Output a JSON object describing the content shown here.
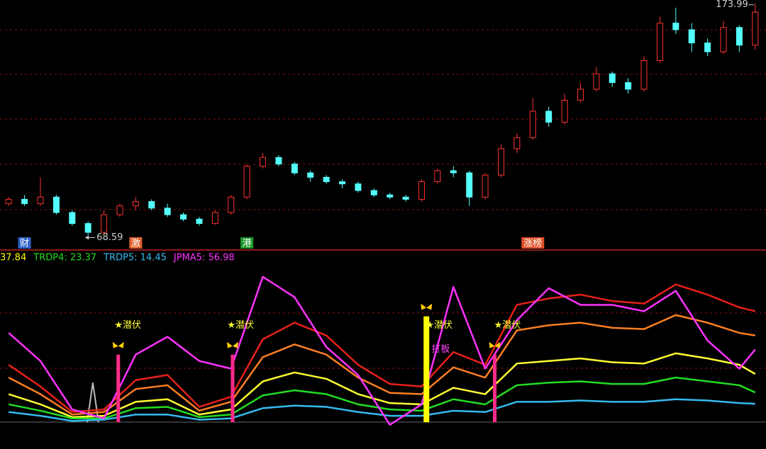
{
  "chart_data": [
    {
      "type": "candlestick",
      "xlim": [
        -0.5,
        47.5
      ],
      "ylim": [
        62.3,
        175.5
      ],
      "up_color": "#ff3232",
      "down_color": "#54ffff",
      "open": [
        83,
        85,
        83,
        86,
        79,
        74,
        70,
        78,
        82,
        84,
        81,
        78,
        76,
        74,
        79,
        86,
        100,
        104,
        101,
        97,
        95,
        93,
        92,
        89,
        87,
        86,
        85,
        93,
        98,
        97,
        86,
        96,
        108,
        113,
        125,
        120,
        130,
        135,
        142,
        138,
        135,
        148,
        165,
        162,
        156,
        152,
        163,
        155
      ],
      "close": [
        85,
        83,
        86,
        79,
        74,
        70,
        78,
        82,
        84,
        81,
        78,
        76,
        74,
        79,
        86,
        100,
        104,
        101,
        97,
        95,
        93,
        92,
        89,
        87,
        86,
        85,
        93,
        98,
        97,
        86,
        96,
        108,
        113,
        125,
        120,
        130,
        135,
        142,
        138,
        135,
        148,
        165,
        162,
        156,
        152,
        163,
        155,
        170
      ],
      "high": [
        86,
        87,
        95,
        87,
        80,
        75,
        80,
        83,
        86,
        85,
        83,
        79,
        77,
        80,
        87,
        101,
        106,
        105,
        102,
        98,
        96,
        94,
        93,
        90,
        88,
        87,
        94,
        99,
        100,
        98,
        97,
        110,
        115,
        131,
        127,
        133,
        138,
        145,
        143,
        140,
        150,
        168,
        172,
        165,
        158,
        166,
        164,
        173.99
      ],
      "low": [
        82,
        82,
        82,
        78,
        73,
        68.59,
        69.5,
        77,
        80,
        80,
        77,
        75,
        73,
        73.5,
        78,
        85,
        99,
        100,
        96,
        93,
        92,
        90,
        88,
        86,
        85,
        84,
        84,
        92,
        95,
        82,
        85,
        95,
        106,
        112,
        118,
        119,
        129,
        134,
        136,
        133,
        134,
        147,
        160,
        152,
        150,
        151,
        152,
        153
      ],
      "events": [
        {
          "x": 1,
          "label": "财",
          "color": "#2f63c9"
        },
        {
          "x": 8,
          "label": "激",
          "color": "#e0602a"
        },
        {
          "x": 15,
          "label": "港",
          "color": "#1e9a2a"
        },
        {
          "x": 33,
          "label": "涨榜",
          "color": "#e0502a"
        }
      ]
    },
    {
      "type": "line",
      "xlim": [
        -0.5,
        47.5
      ],
      "ylim": [
        -21,
        135
      ],
      "header": [
        {
          "text": "37.84",
          "color": "#ffff00"
        },
        {
          "text": "TRDP4: 23.37",
          "color": "#22dd22"
        },
        {
          "text": "TRDP5: 14.45",
          "color": "#33bbee"
        },
        {
          "text": "JPMA5: 56.98",
          "color": "#ff33ff"
        }
      ],
      "x": [
        0,
        2,
        4,
        6,
        8,
        10,
        12,
        14,
        16,
        18,
        20,
        22,
        24,
        26,
        28,
        30,
        32,
        34,
        36,
        38,
        40,
        42,
        44,
        46,
        47
      ],
      "series": [
        {
          "color": "#e8201a",
          "values": [
            45,
            28,
            8,
            10,
            33,
            37,
            12,
            20,
            65,
            78,
            68,
            45,
            30,
            28,
            55,
            45,
            92,
            97,
            100,
            95,
            93,
            108,
            100,
            90,
            87
          ]
        },
        {
          "color": "#ff7f22",
          "values": [
            35,
            22,
            6,
            8,
            26,
            29,
            9,
            16,
            51,
            61,
            53,
            35,
            23,
            22,
            43,
            35,
            72,
            76,
            78,
            74,
            73,
            84,
            78,
            70,
            68
          ]
        },
        {
          "color": "#ffff33",
          "values": [
            22,
            14,
            4,
            5,
            16,
            18,
            6,
            10,
            32,
            39,
            34,
            22,
            15,
            14,
            27,
            22,
            46,
            48,
            50,
            47,
            46,
            54,
            50,
            45,
            37.84
          ]
        },
        {
          "color": "#22dd22",
          "values": [
            14,
            9,
            3,
            3,
            11,
            12,
            4,
            6,
            21,
            25,
            22,
            14,
            10,
            9,
            18,
            14,
            29,
            31,
            32,
            30,
            30,
            35,
            32,
            29,
            23.37
          ]
        },
        {
          "color": "#33bbee",
          "values": [
            8,
            5,
            1,
            2,
            6,
            6,
            2,
            3,
            11,
            13,
            12,
            8,
            5,
            5,
            9,
            8,
            16,
            16,
            17,
            16,
            16,
            18,
            17,
            15,
            14.45
          ]
        },
        {
          "color": "#ff33ff",
          "values": [
            70,
            48,
            10,
            3,
            53,
            67,
            48,
            42,
            114,
            98,
            59,
            37,
            -2,
            14,
            106,
            42,
            80,
            105,
            92,
            92,
            87,
            103,
            64,
            42,
            56.98
          ]
        }
      ],
      "spike": {
        "x": 5.3,
        "value": 31,
        "color": "#bbbbbb"
      },
      "signals": [
        {
          "x": 6.9,
          "value": 53,
          "color": "#ff2b8a"
        },
        {
          "x": 14.1,
          "value": 53,
          "color": "#ff2b8a"
        },
        {
          "x": 26.3,
          "value": 83,
          "color": "#ffff00"
        },
        {
          "x": 30.6,
          "value": 53,
          "color": "#ff2b8a"
        }
      ],
      "annotations": [
        {
          "x": 7.5,
          "value": 76,
          "text": "★潜伏",
          "color": "#ffff33"
        },
        {
          "x": 14.6,
          "value": 76,
          "text": "★潜伏",
          "color": "#ffff33"
        },
        {
          "x": 27.1,
          "value": 76,
          "text": "★潜伏",
          "color": "#ffff33"
        },
        {
          "x": 31.4,
          "value": 76,
          "text": "★潜伏",
          "color": "#ffff33"
        },
        {
          "x": 27.2,
          "value": 57,
          "text": "打板",
          "color": "#ff44ff"
        }
      ]
    }
  ]
}
